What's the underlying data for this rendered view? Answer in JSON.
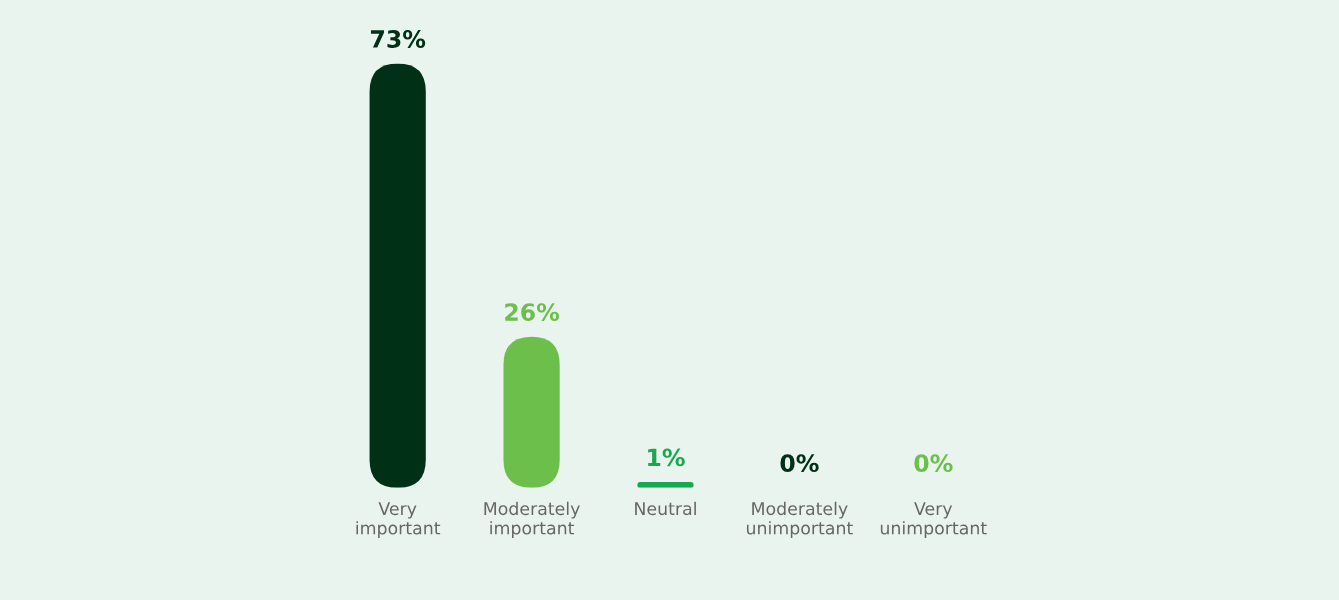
{
  "chart_data": {
    "type": "bar",
    "categories": [
      "Very\nimportant",
      "Moderately\nimportant",
      "Neutral",
      "Moderately\nunimportant",
      "Very\nunimportant"
    ],
    "values": [
      73,
      26,
      1,
      0,
      0
    ],
    "value_labels": [
      "73%",
      "26%",
      "1%",
      "0%",
      "0%"
    ],
    "colors": [
      "#003016",
      "#6cbf4b",
      "#1aa84f",
      "#003016",
      "#6cbf4b"
    ],
    "grid": false,
    "legend": false,
    "tick_labels": "x"
  }
}
